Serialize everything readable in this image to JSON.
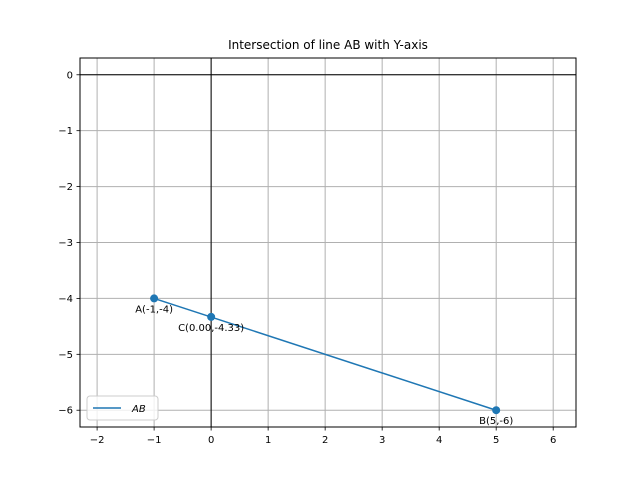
{
  "chart_data": {
    "type": "line",
    "title": "Intersection of line AB with Y-axis",
    "xlabel": "",
    "ylabel": "",
    "xlim": [
      -2.3,
      6.4
    ],
    "ylim": [
      -6.3,
      0.3
    ],
    "xticks": [
      -2,
      -1,
      0,
      1,
      2,
      3,
      4,
      5,
      6
    ],
    "yticks": [
      0,
      -1,
      -2,
      -3,
      -4,
      -5,
      -6
    ],
    "xtick_labels": [
      "−2",
      "−1",
      "0",
      "1",
      "2",
      "3",
      "4",
      "5",
      "6"
    ],
    "ytick_labels": [
      "0",
      "−1",
      "−2",
      "−3",
      "−4",
      "−5",
      "−6"
    ],
    "grid": true,
    "axis_lines": {
      "x": 0,
      "y": 0
    },
    "series": [
      {
        "name": "AB",
        "color": "#1f77b4",
        "x": [
          -1,
          5
        ],
        "y": [
          -4,
          -6
        ]
      }
    ],
    "points": [
      {
        "label": "A(-1,-4)",
        "x": -1,
        "y": -4
      },
      {
        "label": "B(5,-6)",
        "x": 5,
        "y": -6
      },
      {
        "label": "C(0.00,-4.33)",
        "x": 0,
        "y": -4.33
      }
    ],
    "legend": {
      "placement": "bottom-left",
      "entries": [
        "AB"
      ]
    }
  }
}
